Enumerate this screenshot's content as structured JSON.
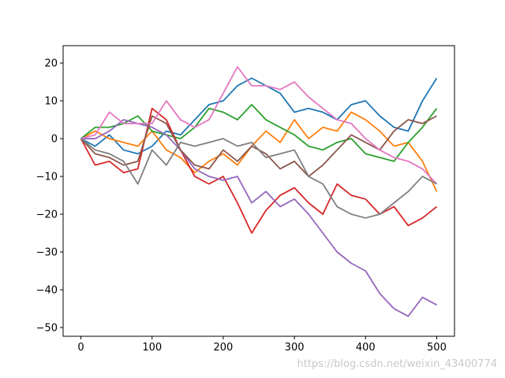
{
  "chart_data": {
    "type": "line",
    "x": [
      0,
      20,
      40,
      60,
      80,
      100,
      120,
      140,
      160,
      180,
      200,
      220,
      240,
      260,
      280,
      300,
      320,
      340,
      360,
      380,
      400,
      420,
      440,
      460,
      480,
      500
    ],
    "series": [
      {
        "color": "#1f77b4",
        "values": [
          0,
          -2,
          1,
          -3,
          -4,
          -2,
          2,
          1,
          5,
          9,
          10,
          14,
          16,
          14,
          12,
          7,
          8,
          7,
          5,
          9,
          10,
          6,
          3,
          2,
          10,
          16
        ]
      },
      {
        "color": "#ff7f0e",
        "values": [
          0,
          2,
          0,
          -1,
          -2,
          2,
          -3,
          -5,
          -9,
          -6,
          -4,
          -7,
          -2,
          2,
          -1,
          5,
          0,
          3,
          2,
          7,
          5,
          2,
          -2,
          -1,
          -6,
          -14
        ]
      },
      {
        "color": "#2ca02c",
        "values": [
          0,
          3,
          3,
          4,
          6,
          2,
          1,
          0,
          3,
          8,
          7,
          5,
          9,
          5,
          3,
          1,
          -2,
          -3,
          -1,
          0,
          -4,
          -5,
          -6,
          -1,
          3,
          8
        ]
      },
      {
        "color": "#d62728",
        "values": [
          0,
          -7,
          -6,
          -9,
          -8,
          8,
          5,
          -3,
          -10,
          -12,
          -10,
          -17,
          -25,
          -19,
          -15,
          -13,
          -17,
          -20,
          -12,
          -15,
          -16,
          -20,
          -18,
          -23,
          -21,
          -18
        ]
      },
      {
        "color": "#9467bd",
        "values": [
          0,
          0,
          2,
          5,
          4,
          3,
          1,
          -3,
          -8,
          -10,
          -11,
          -10,
          -17,
          -14,
          -18,
          -16,
          -20,
          -25,
          -30,
          -33,
          -35,
          -41,
          -45,
          -47,
          -42,
          -44
        ]
      },
      {
        "color": "#8c564b",
        "values": [
          0,
          -4,
          -5,
          -7,
          -6,
          6,
          4,
          -3,
          -7,
          -8,
          -3,
          -6,
          -2,
          -4,
          -8,
          -6,
          -10,
          -7,
          -3,
          1,
          -1,
          -3,
          2,
          5,
          4,
          6
        ]
      },
      {
        "color": "#e377c2",
        "values": [
          0,
          1,
          7,
          4,
          4,
          4,
          10,
          5,
          3,
          5,
          12,
          19,
          14,
          14,
          13,
          15,
          11,
          8,
          5,
          4,
          0,
          -3,
          -5,
          -6,
          -8,
          -12
        ]
      },
      {
        "color": "#7f7f7f",
        "values": [
          0,
          -3,
          -4,
          -6,
          -12,
          -3,
          -7,
          -1,
          -2,
          -1,
          0,
          -2,
          -1,
          -5,
          -4,
          -3,
          -10,
          -12,
          -18,
          -20,
          -21,
          -20,
          -17,
          -14,
          -10,
          -12
        ]
      }
    ],
    "xlim": [
      -25,
      525
    ],
    "ylim": [
      -52.3,
      24.6
    ],
    "xticks": [
      0,
      100,
      200,
      300,
      400,
      500
    ],
    "yticks": [
      {
        "value": -50,
        "label": "−50"
      },
      {
        "value": -40,
        "label": "−40"
      },
      {
        "value": -30,
        "label": "−30"
      },
      {
        "value": -20,
        "label": "−20"
      },
      {
        "value": -10,
        "label": "−10"
      },
      0,
      10,
      20
    ],
    "watermark": "https://blog.csdn.net/weixin_43400774"
  }
}
